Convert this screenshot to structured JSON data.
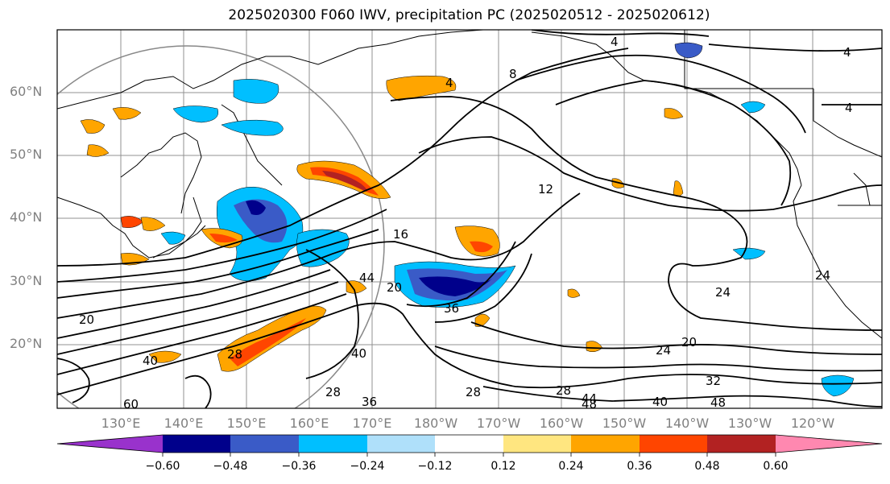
{
  "title": "2025020300 F060 IWV, precipitation PC (2025020512 - 2025020612)",
  "latitude_labels": [
    "60°N",
    "50°N",
    "40°N",
    "30°N",
    "20°N"
  ],
  "longitude_labels": [
    "130°E",
    "140°E",
    "150°E",
    "160°E",
    "170°E",
    "180°W",
    "170°W",
    "160°W",
    "150°W",
    "140°W",
    "130°W",
    "120°W"
  ],
  "contour_labels": [
    "4",
    "4",
    "4",
    "4",
    "8",
    "12",
    "16",
    "20",
    "24",
    "20",
    "28",
    "28",
    "28",
    "32",
    "36",
    "36",
    "40",
    "40",
    "40",
    "44",
    "44",
    "48",
    "48",
    "60",
    "20",
    "24",
    "28",
    "24"
  ],
  "colorbar": {
    "tick_labels": [
      "−0.60",
      "−0.48",
      "−0.36",
      "−0.24",
      "−0.12",
      "0.12",
      "0.24",
      "0.36",
      "0.48",
      "0.60"
    ],
    "colors": [
      "#9932cc",
      "#00008b",
      "#3a5bc7",
      "#00bfff",
      "#afe0fa",
      "#ffffff",
      "#ffe680",
      "#ffa500",
      "#ff4500",
      "#b22222",
      "#ff88b0"
    ]
  }
}
